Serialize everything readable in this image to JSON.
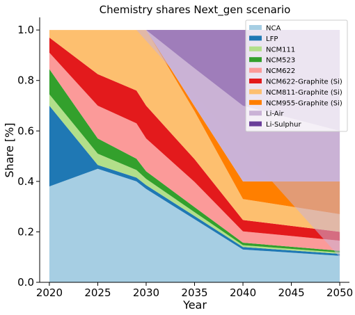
{
  "chart_data": {
    "type": "area",
    "title": "Chemistry shares Next_gen scenario",
    "xlabel": "Year",
    "ylabel": "Share [%]",
    "xlim": [
      2019,
      2051
    ],
    "ylim": [
      0,
      1.05
    ],
    "xticks": [
      "2020",
      "2025",
      "2030",
      "2035",
      "2040",
      "2045",
      "2050"
    ],
    "yticks": [
      "0.0",
      "0.2",
      "0.4",
      "0.6",
      "0.8",
      "1.0"
    ],
    "legend_position": "top-right",
    "grid": false,
    "x": [
      2020,
      2025,
      2029,
      2030,
      2035,
      2040,
      2050
    ],
    "series": [
      {
        "name": "NCA",
        "color": "#a6cee3",
        "values": [
          0.38,
          0.45,
          0.4,
          0.37,
          0.25,
          0.13,
          0.105
        ]
      },
      {
        "name": "LFP",
        "color": "#1f78b4",
        "values": [
          0.32,
          0.015,
          0.015,
          0.015,
          0.013,
          0.01,
          0.008
        ]
      },
      {
        "name": "NCM111",
        "color": "#b2df8a",
        "values": [
          0.045,
          0.045,
          0.03,
          0.025,
          0.015,
          0.007,
          0.005
        ]
      },
      {
        "name": "NCM523",
        "color": "#33a02c",
        "values": [
          0.1,
          0.06,
          0.045,
          0.03,
          0.02,
          0.01,
          0.007
        ]
      },
      {
        "name": "NCM622",
        "color": "#fb9a99",
        "values": [
          0.065,
          0.13,
          0.14,
          0.13,
          0.1,
          0.045,
          0.04
        ]
      },
      {
        "name": "NCM622-Graphite (Si)",
        "color": "#e31a1c",
        "values": [
          0.06,
          0.125,
          0.13,
          0.13,
          0.09,
          0.045,
          0.035
        ]
      },
      {
        "name": "NCM811-Graphite (Si)",
        "color": "#fdbf6f",
        "values": [
          0.03,
          0.175,
          0.24,
          0.3,
          0.19,
          0.083,
          0.07
        ]
      },
      {
        "name": "NCM955-Graphite (Si)",
        "color": "#ff7f00",
        "values": [
          0.0,
          0.0,
          0.0,
          0.0,
          0.02,
          0.07,
          0.13
        ]
      },
      {
        "name": "Li-Air",
        "color": "#cab2d6",
        "values": [
          0.0,
          0.0,
          0.0,
          0.0,
          0.15,
          0.3,
          0.2
        ]
      },
      {
        "name": "Li-Sulphur",
        "color": "#6a3d9a",
        "values": [
          0.0,
          0.0,
          0.0,
          0.0,
          0.152,
          0.3,
          0.4
        ]
      }
    ],
    "overlay_series": [
      {
        "name": "Li-Air",
        "color": "#cab2d6",
        "opacity": 0.55,
        "x": [
          2029,
          2050
        ],
        "values": [
          1.0,
          1.0
        ]
      }
    ]
  }
}
